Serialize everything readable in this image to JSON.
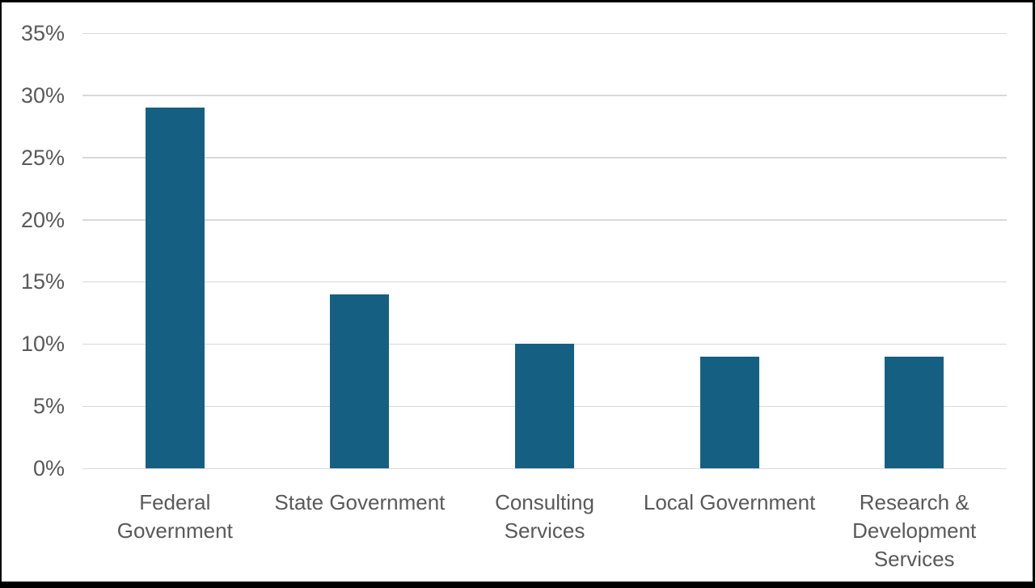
{
  "chart_data": {
    "type": "bar",
    "title": "",
    "xlabel": "",
    "ylabel": "",
    "categories": [
      "Federal Government",
      "State Government",
      "Consulting Services",
      "Local Government",
      "Research & Development Services"
    ],
    "tick_labels": [
      "Federal\nGovernment",
      "State Government",
      "Consulting\nServices",
      "Local Government",
      "Research &\nDevelopment\nServices"
    ],
    "values": [
      29,
      14,
      10,
      9,
      9
    ],
    "value_unit": "%",
    "ylim": [
      0,
      35
    ],
    "ytick_step": 5,
    "yticks": [
      "0%",
      "5%",
      "10%",
      "15%",
      "20%",
      "25%",
      "30%",
      "35%"
    ],
    "grid": true,
    "legend": false,
    "colors": {
      "bar_fill": "#156082",
      "gridline": "#D9D9D9",
      "axis_text": "#595959",
      "background": "#FFFFFF",
      "frame_border": "#000000"
    }
  }
}
